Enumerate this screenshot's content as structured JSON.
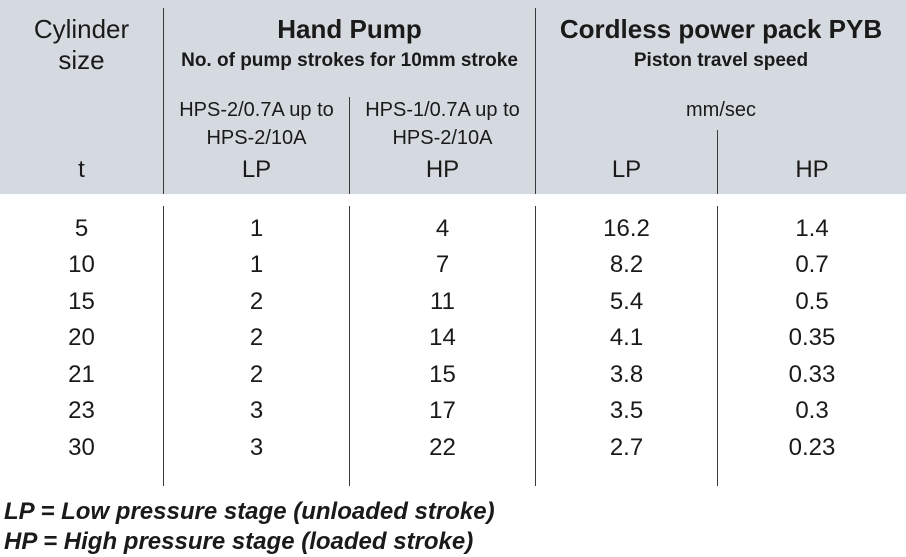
{
  "header": {
    "cylinder_line1": "Cylinder",
    "cylinder_line2": "size",
    "cylinder_unit": "t",
    "hand_pump_title": "Hand Pump",
    "hand_pump_sub": "No. of pump strokes for 10mm stroke",
    "hand_lp_model_line1": "HPS-2/0.7A up to",
    "hand_lp_model_line2": "HPS-2/10A",
    "hand_hp_model_line1": "HPS-1/0.7A up to",
    "hand_hp_model_line2": "HPS-2/10A",
    "lp_label": "LP",
    "hp_label": "HP",
    "power_title": "Cordless power pack PYB",
    "power_sub": "Piston travel speed",
    "power_unit": "mm/sec",
    "power_lp_label": "LP",
    "power_hp_label": "HP"
  },
  "rows": [
    {
      "size": "5",
      "hand_lp": "1",
      "hand_hp": "4",
      "power_lp": "16.2",
      "power_hp": "1.4"
    },
    {
      "size": "10",
      "hand_lp": "1",
      "hand_hp": "7",
      "power_lp": "8.2",
      "power_hp": "0.7"
    },
    {
      "size": "15",
      "hand_lp": "2",
      "hand_hp": "11",
      "power_lp": "5.4",
      "power_hp": "0.5"
    },
    {
      "size": "20",
      "hand_lp": "2",
      "hand_hp": "14",
      "power_lp": "4.1",
      "power_hp": "0.35"
    },
    {
      "size": "21",
      "hand_lp": "2",
      "hand_hp": "15",
      "power_lp": "3.8",
      "power_hp": "0.33"
    },
    {
      "size": "23",
      "hand_lp": "3",
      "hand_hp": "17",
      "power_lp": "3.5",
      "power_hp": "0.3"
    },
    {
      "size": "30",
      "hand_lp": "3",
      "hand_hp": "22",
      "power_lp": "2.7",
      "power_hp": "0.23"
    }
  ],
  "legend": {
    "lp": "LP = Low pressure stage (unloaded stroke)",
    "hp": "HP = High pressure stage (loaded stroke)"
  }
}
